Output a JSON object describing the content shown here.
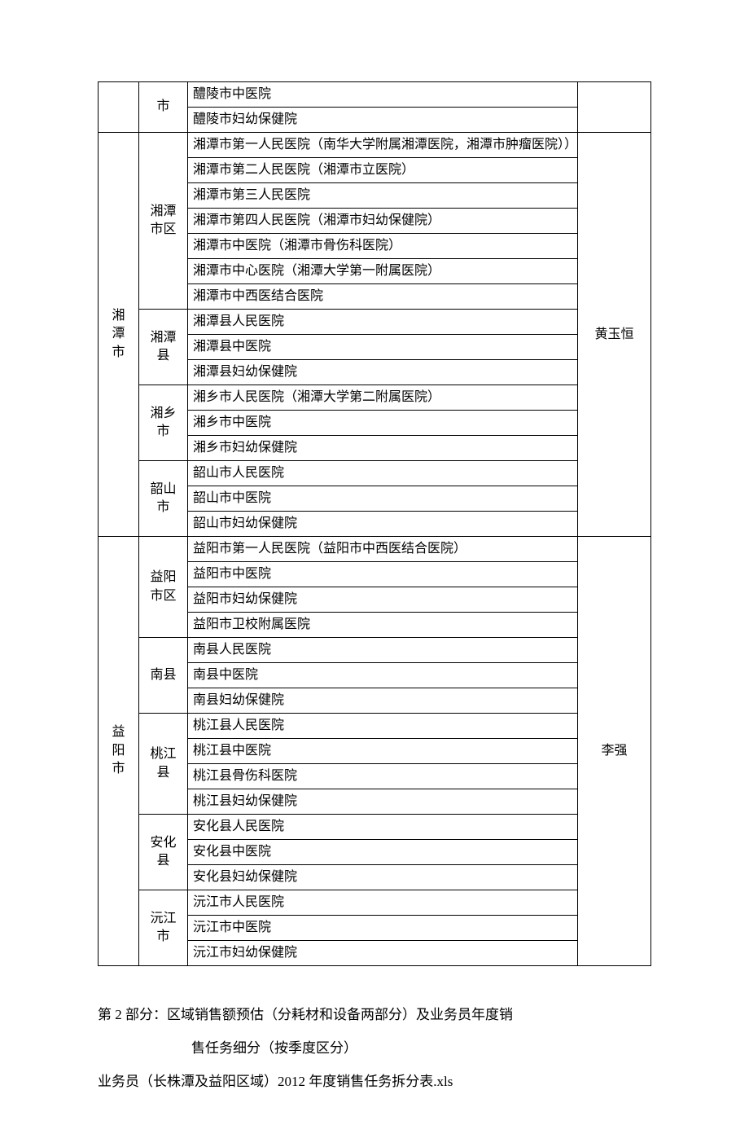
{
  "table": {
    "groups": [
      {
        "city": "",
        "person": "",
        "city_rowspan": 2,
        "person_rowspan": 0,
        "districts": [
          {
            "name": "市",
            "rowspan": 2,
            "hospitals": [
              "醴陵市中医院",
              "醴陵市妇幼保健院"
            ]
          }
        ]
      },
      {
        "city": "湘潭市",
        "person": "黄玉恒",
        "city_rowspan": 16,
        "person_rowspan": 16,
        "districts": [
          {
            "name": "湘潭市区",
            "rowspan": 7,
            "hospitals": [
              "湘潭市第一人民医院（南华大学附属湘潭医院，湘潭市肿瘤医院））",
              "湘潭市第二人民医院（湘潭市立医院）",
              "湘潭市第三人民医院",
              "湘潭市第四人民医院（湘潭市妇幼保健院）",
              "湘潭市中医院（湘潭市骨伤科医院）",
              "湘潭市中心医院（湘潭大学第一附属医院）",
              "湘潭市中西医结合医院"
            ]
          },
          {
            "name": "湘潭县",
            "rowspan": 3,
            "hospitals": [
              "湘潭县人民医院",
              "湘潭县中医院",
              "湘潭县妇幼保健院"
            ]
          },
          {
            "name": "湘乡市",
            "rowspan": 3,
            "hospitals": [
              "湘乡市人民医院（湘潭大学第二附属医院）",
              "湘乡市中医院",
              "湘乡市妇幼保健院"
            ]
          },
          {
            "name": "韶山市",
            "rowspan": 3,
            "hospitals": [
              "韶山市人民医院",
              "韶山市中医院",
              "韶山市妇幼保健院"
            ]
          }
        ]
      },
      {
        "city": "益阳市",
        "person": "李强",
        "city_rowspan": 17,
        "person_rowspan": 17,
        "districts": [
          {
            "name": "益阳市区",
            "rowspan": 4,
            "hospitals": [
              "益阳市第一人民医院（益阳市中西医结合医院）",
              "益阳市中医院",
              "益阳市妇幼保健院",
              "益阳市卫校附属医院"
            ]
          },
          {
            "name": "南县",
            "rowspan": 3,
            "hospitals": [
              "南县人民医院",
              "南县中医院",
              "南县妇幼保健院"
            ]
          },
          {
            "name": "桃江县",
            "rowspan": 4,
            "hospitals": [
              "桃江县人民医院",
              "桃江县中医院",
              "桃江县骨伤科医院",
              "桃江县妇幼保健院"
            ]
          },
          {
            "name": "安化县",
            "rowspan": 3,
            "hospitals": [
              "安化县人民医院",
              "安化县中医院",
              "安化县妇幼保健院"
            ]
          },
          {
            "name": "沅江市",
            "rowspan": 3,
            "hospitals": [
              "沅江市人民医院",
              "沅江市中医院",
              "沅江市妇幼保健院"
            ]
          }
        ]
      }
    ]
  },
  "footer": {
    "section_title": "第 2 部分：区域销售额预估（分耗材和设备两部分）及业务员年度销",
    "section_sub": "售任务细分（按季度区分）",
    "xls_line": "业务员（长株潭及益阳区域）2012 年度销售任务拆分表.xls"
  }
}
